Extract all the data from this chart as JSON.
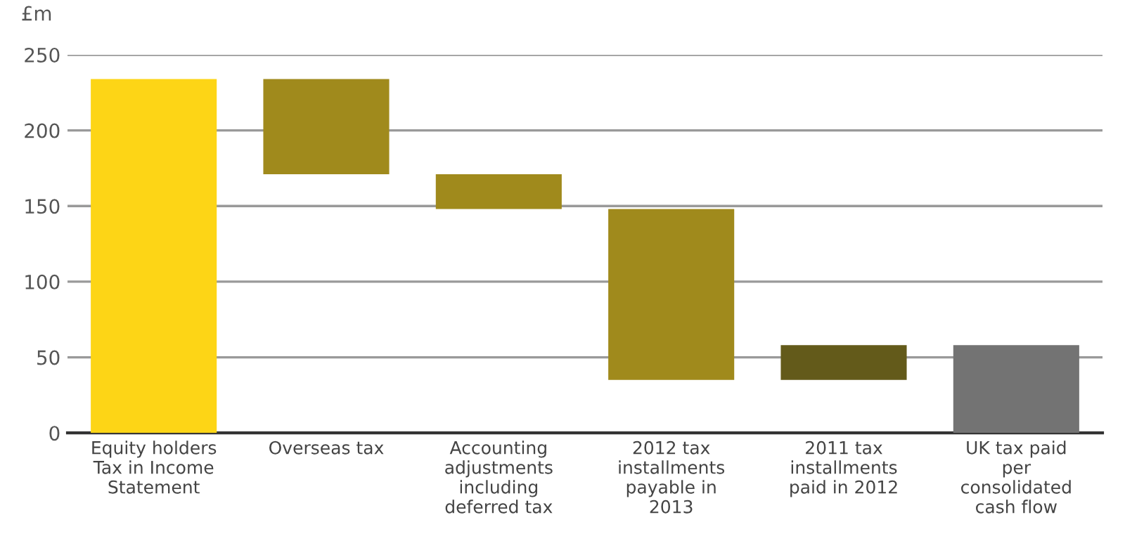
{
  "chart_data": {
    "type": "bar",
    "ylabel": "£m",
    "categories": [
      "Equity holders\nTax in Income\nStatement",
      "Overseas tax",
      "Accounting\nadjustments\nincluding\ndeferred tax",
      "2012 tax\ninstallments\npayable in\n2013",
      "2011 tax\ninstallments\npaid in 2012",
      "UK tax paid\nper\nconsolidated\ncash flow"
    ],
    "values": [
      234,
      -63,
      -23,
      -113,
      23,
      58
    ],
    "base": [
      0,
      234,
      171,
      148,
      35,
      0
    ],
    "colors": [
      "#fdd516",
      "#a08a1c",
      "#a08a1c",
      "#a08a1c",
      "#635a1a",
      "#737373"
    ],
    "ylim": [
      0,
      250
    ],
    "yticks": [
      0,
      50,
      100,
      150,
      200,
      250
    ],
    "grid": "y"
  }
}
